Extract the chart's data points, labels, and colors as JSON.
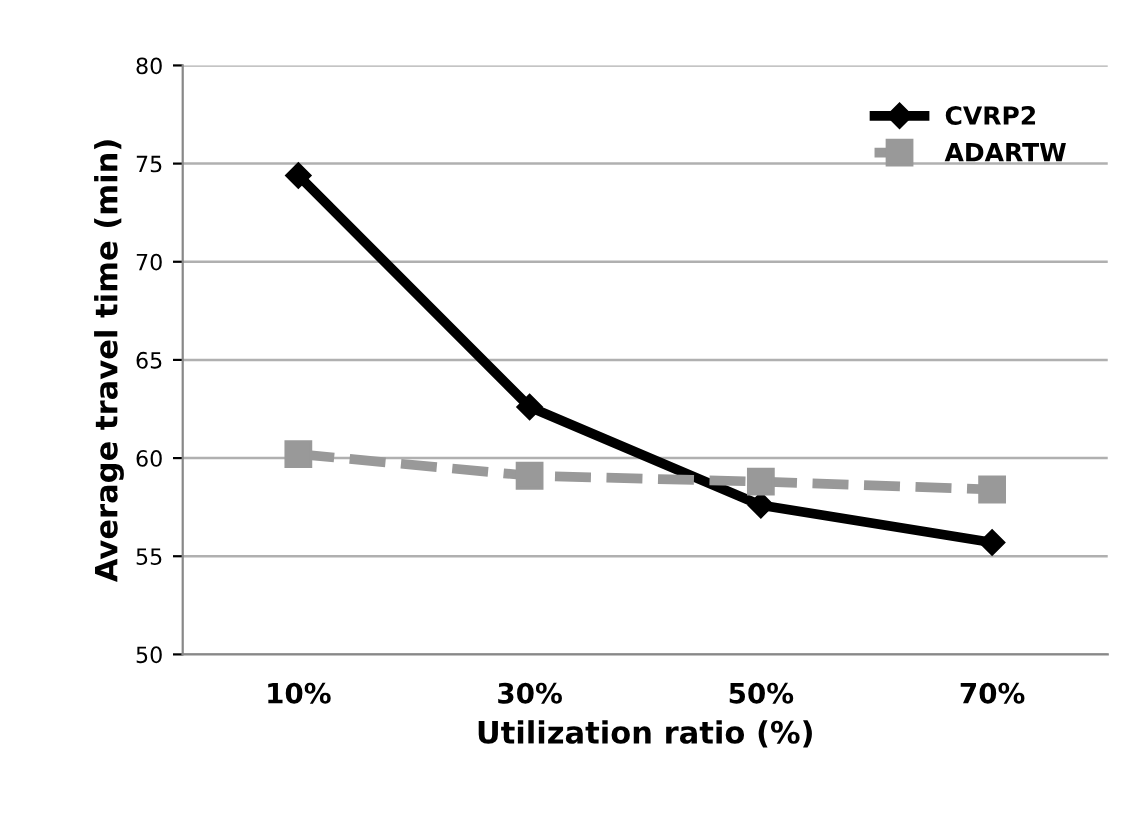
{
  "chart_data": {
    "type": "line",
    "xlabel": "Utilization ratio (%)",
    "ylabel": "Average travel time (min)",
    "categories": [
      "10%",
      "30%",
      "50%",
      "70%"
    ],
    "series": [
      {
        "name": "CVRP2",
        "color": "#000000",
        "values": [
          74.4,
          62.6,
          57.6,
          55.7
        ],
        "marker": "diamond",
        "line_style": "solid"
      },
      {
        "name": "ADARTW",
        "color": "#999999",
        "values": [
          60.2,
          59.1,
          58.8,
          58.4
        ],
        "marker": "square",
        "line_style": "dashed"
      }
    ],
    "ylim": [
      50,
      80
    ],
    "yticks": [
      50,
      55,
      60,
      65,
      70,
      75,
      80
    ],
    "grid": "y",
    "legend": "top right"
  }
}
